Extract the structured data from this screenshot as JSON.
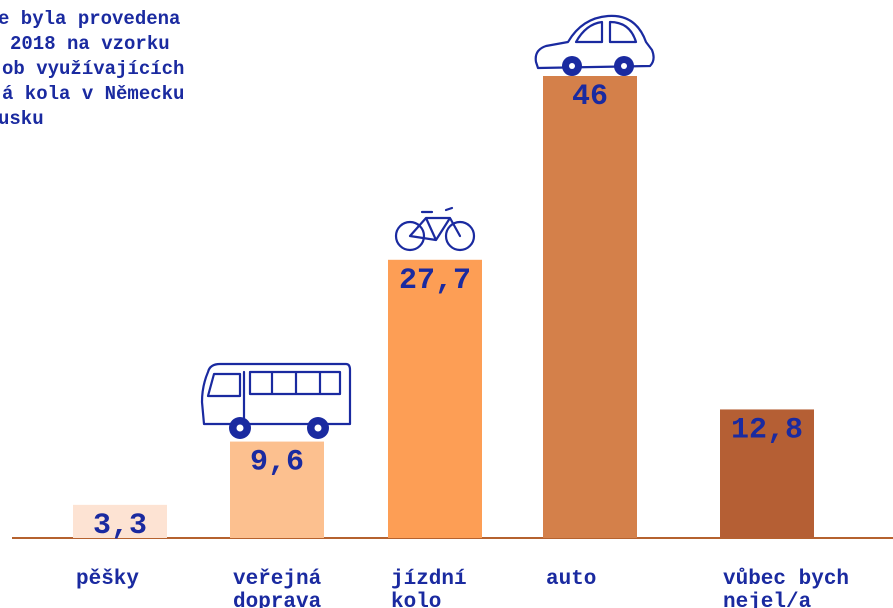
{
  "chart_data": {
    "type": "bar",
    "annotation": [
      "e byla provedena",
      "2018 na vzorku",
      "ob využívajících",
      "á kola v Německu",
      "usku"
    ],
    "categories": [
      [
        "pěšky"
      ],
      [
        "veřejná",
        "doprava"
      ],
      [
        "jízdní",
        "kolo"
      ],
      [
        "auto"
      ],
      [
        "vůbec bych",
        "nejel/a"
      ]
    ],
    "values": [
      3.3,
      9.6,
      27.7,
      46,
      12.8
    ],
    "value_labels": [
      "3,3",
      "9,6",
      "27,7",
      "46",
      "12,8"
    ],
    "colors": [
      "#fde3d3",
      "#fcc08f",
      "#fd9e55",
      "#d4804a",
      "#b55f34"
    ],
    "axis_color": "#b5622f"
  }
}
